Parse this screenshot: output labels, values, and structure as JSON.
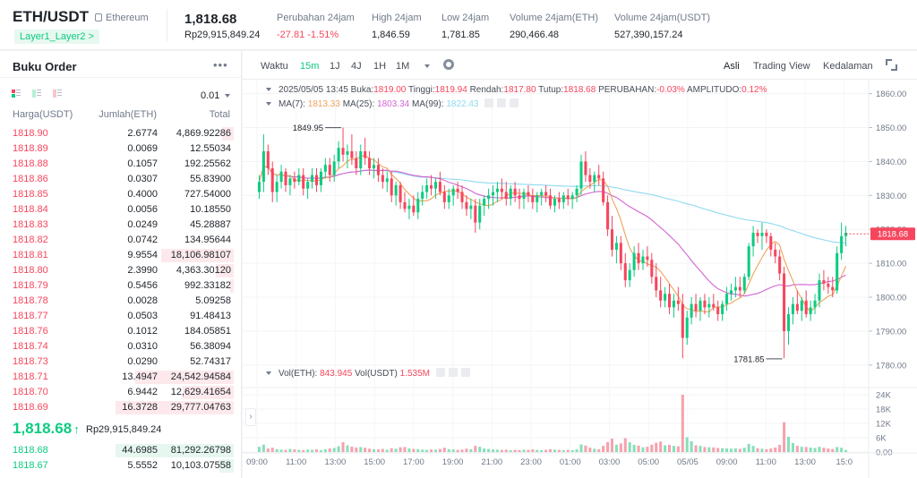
{
  "header": {
    "pair": "ETH/USDT",
    "coin_name": "Ethereum",
    "tag": "Layer1_Layer2 >",
    "last_price": "1,818.68",
    "last_price_fiat": "Rp29,915,849.24",
    "stats": [
      {
        "label": "Perubahan 24jam",
        "value": "-27.81 -1.51%",
        "red": true
      },
      {
        "label": "High 24jam",
        "value": "1,846.59",
        "red": false
      },
      {
        "label": "Low 24jam",
        "value": "1,781.85",
        "red": false
      },
      {
        "label": "Volume 24jam(ETH)",
        "value": "290,466.48",
        "red": false
      },
      {
        "label": "Volume 24jam(USDT)",
        "value": "527,390,157.24",
        "red": false
      }
    ]
  },
  "orderbook": {
    "title": "Buku Order",
    "more": "•••",
    "precision": "0.01",
    "col_price": "Harga(USDT)",
    "col_amount": "Jumlah(ETH)",
    "col_total": "Total",
    "asks": [
      {
        "price": "1818.90",
        "amount": "2.6774",
        "total": "4,869.92286",
        "depth": 0.1
      },
      {
        "price": "1818.89",
        "amount": "0.0069",
        "total": "12.55034",
        "depth": 0.0
      },
      {
        "price": "1818.88",
        "amount": "0.1057",
        "total": "192.25562",
        "depth": 0.0
      },
      {
        "price": "1818.86",
        "amount": "0.0307",
        "total": "55.83900",
        "depth": 0.0
      },
      {
        "price": "1818.85",
        "amount": "0.4000",
        "total": "727.54000",
        "depth": 0.0
      },
      {
        "price": "1818.84",
        "amount": "0.0056",
        "total": "10.18550",
        "depth": 0.0
      },
      {
        "price": "1818.83",
        "amount": "0.0249",
        "total": "45.28887",
        "depth": 0.0
      },
      {
        "price": "1818.82",
        "amount": "0.0742",
        "total": "134.95644",
        "depth": 0.0
      },
      {
        "price": "1818.81",
        "amount": "9.9554",
        "total": "18,106.98107",
        "depth": 0.61
      },
      {
        "price": "1818.80",
        "amount": "2.3990",
        "total": "4,363.30120",
        "depth": 0.15
      },
      {
        "price": "1818.79",
        "amount": "0.5456",
        "total": "992.33182",
        "depth": 0.03
      },
      {
        "price": "1818.78",
        "amount": "0.0028",
        "total": "5.09258",
        "depth": 0.0
      },
      {
        "price": "1818.77",
        "amount": "0.0503",
        "total": "91.48413",
        "depth": 0.0
      },
      {
        "price": "1818.76",
        "amount": "0.1012",
        "total": "184.05851",
        "depth": 0.0
      },
      {
        "price": "1818.74",
        "amount": "0.0310",
        "total": "56.38094",
        "depth": 0.0
      },
      {
        "price": "1818.73",
        "amount": "0.0290",
        "total": "52.74317",
        "depth": 0.0
      },
      {
        "price": "1818.71",
        "amount": "13.4947",
        "total": "24,542.94584",
        "depth": 0.83
      },
      {
        "price": "1818.70",
        "amount": "6.9442",
        "total": "12,629.41654",
        "depth": 0.43
      },
      {
        "price": "1818.69",
        "amount": "16.3728",
        "total": "29,777.04763",
        "depth": 1.0
      }
    ],
    "last_price": "1,818.68",
    "last_arrow": "↑",
    "last_fiat": "Rp29,915,849.24",
    "bids": [
      {
        "price": "1818.68",
        "amount": "44.6985",
        "total": "81,292.26798",
        "depth": 1.0
      },
      {
        "price": "1818.67",
        "amount": "5.5552",
        "total": "10,103.07558",
        "depth": 0.12
      }
    ]
  },
  "chart_toolbar": {
    "time_label": "Waktu",
    "intervals": [
      "15m",
      "1J",
      "4J",
      "1H",
      "1M"
    ],
    "active_interval": "15m",
    "views": [
      "Asli",
      "Trading View",
      "Kedalaman"
    ],
    "active_view": "Asli"
  },
  "chart_legend": {
    "date": "2025/05/05 13:45",
    "open_label": "Buka:",
    "open": "1819.00",
    "high_label": "Tinggi:",
    "high": "1819.94",
    "low_label": "Rendah:",
    "low": "1817.80",
    "close_label": "Tutup:",
    "close": "1818.68",
    "change_label": "PERUBAHAN:",
    "change": "-0.03%",
    "amp_label": "AMPLITUDO:",
    "amp": "0.12%",
    "ma7_label": "MA(7):",
    "ma7": "1813.33",
    "ma25_label": "MA(25):",
    "ma25": "1803.34",
    "ma99_label": "MA(99):",
    "ma99": "1822.43",
    "vol_eth_label": "Vol(ETH):",
    "vol_eth": "843.945",
    "vol_usdt_label": "Vol(USDT)",
    "vol_usdt": "1.535M"
  },
  "colors": {
    "up": "#0ecb81",
    "down": "#f6465d",
    "ma7": "#f0a35b",
    "ma25": "#d365d3",
    "ma99": "#8fd9f0"
  },
  "chart_data": {
    "type": "candlestick",
    "interval": "15m",
    "price_axis": {
      "min": 1776,
      "max": 1862,
      "ticks": [
        1780,
        1790,
        1800,
        1810,
        1820,
        1830,
        1840,
        1850,
        1860
      ],
      "tick_labels": [
        "1780.00",
        "1790.00",
        "1800.00",
        "1810.00",
        "1820.00",
        "1830.00",
        "1840.00",
        "1850.00",
        "1860.00"
      ]
    },
    "volume_axis": {
      "min": 0,
      "max": 24000,
      "ticks": [
        0,
        6000,
        12000,
        18000,
        24000
      ],
      "tick_labels": [
        "0.00",
        "6K",
        "12K",
        "18K",
        "24K"
      ]
    },
    "time_labels": [
      "09:00",
      "11:00",
      "13:00",
      "15:00",
      "17:00",
      "19:00",
      "21:00",
      "23:00",
      "01:00",
      "03:00",
      "05:00",
      "05/05",
      "09:00",
      "11:00",
      "13:00",
      "15:0"
    ],
    "annotations": [
      {
        "text": "1849.95",
        "value": 1849.95,
        "candle": 19
      },
      {
        "text": "1781.85",
        "value": 1781.85,
        "candle": 119
      }
    ],
    "current_price_label": "1818.68",
    "current_price": 1818.68,
    "candles": [
      [
        1831,
        1836,
        1829,
        1834
      ],
      [
        1834,
        1848,
        1831,
        1843
      ],
      [
        1843,
        1845,
        1836,
        1838
      ],
      [
        1838,
        1840,
        1828,
        1831
      ],
      [
        1831,
        1836,
        1828,
        1834
      ],
      [
        1834,
        1839,
        1832,
        1837
      ],
      [
        1837,
        1838,
        1831,
        1833
      ],
      [
        1833,
        1836,
        1830,
        1835
      ],
      [
        1835,
        1837,
        1832,
        1834
      ],
      [
        1834,
        1838,
        1833,
        1836
      ],
      [
        1836,
        1838,
        1830,
        1832
      ],
      [
        1832,
        1835,
        1829,
        1834
      ],
      [
        1834,
        1838,
        1832,
        1836
      ],
      [
        1836,
        1838,
        1831,
        1833
      ],
      [
        1833,
        1838,
        1831,
        1837
      ],
      [
        1837,
        1841,
        1835,
        1839
      ],
      [
        1839,
        1841,
        1834,
        1836
      ],
      [
        1836,
        1842,
        1834,
        1840
      ],
      [
        1840,
        1846,
        1838,
        1844
      ],
      [
        1844,
        1850,
        1840,
        1842
      ],
      [
        1842,
        1845,
        1838,
        1843
      ],
      [
        1843,
        1848,
        1839,
        1841
      ],
      [
        1841,
        1843,
        1836,
        1838
      ],
      [
        1838,
        1845,
        1836,
        1843
      ],
      [
        1843,
        1847,
        1839,
        1841
      ],
      [
        1841,
        1843,
        1836,
        1838
      ],
      [
        1838,
        1841,
        1835,
        1839
      ],
      [
        1839,
        1841,
        1834,
        1836
      ],
      [
        1836,
        1838,
        1832,
        1834
      ],
      [
        1834,
        1837,
        1831,
        1835
      ],
      [
        1835,
        1837,
        1828,
        1830
      ],
      [
        1830,
        1834,
        1827,
        1833
      ],
      [
        1833,
        1834,
        1826,
        1828
      ],
      [
        1828,
        1831,
        1825,
        1826
      ],
      [
        1826,
        1829,
        1823,
        1827
      ],
      [
        1827,
        1830,
        1824,
        1825
      ],
      [
        1825,
        1831,
        1823,
        1829
      ],
      [
        1829,
        1833,
        1827,
        1831
      ],
      [
        1831,
        1835,
        1829,
        1833
      ],
      [
        1833,
        1836,
        1830,
        1832
      ],
      [
        1832,
        1835,
        1829,
        1834
      ],
      [
        1834,
        1837,
        1830,
        1831
      ],
      [
        1831,
        1833,
        1826,
        1828
      ],
      [
        1828,
        1832,
        1826,
        1830
      ],
      [
        1830,
        1833,
        1827,
        1832
      ],
      [
        1832,
        1834,
        1829,
        1831
      ],
      [
        1831,
        1833,
        1826,
        1828
      ],
      [
        1828,
        1830,
        1824,
        1826
      ],
      [
        1826,
        1829,
        1823,
        1827
      ],
      [
        1827,
        1829,
        1819,
        1822
      ],
      [
        1822,
        1829,
        1820,
        1827
      ],
      [
        1827,
        1830,
        1824,
        1829
      ],
      [
        1829,
        1832,
        1826,
        1830
      ],
      [
        1830,
        1833,
        1827,
        1831
      ],
      [
        1831,
        1834,
        1828,
        1832
      ],
      [
        1832,
        1835,
        1829,
        1831
      ],
      [
        1831,
        1834,
        1827,
        1829
      ],
      [
        1829,
        1833,
        1827,
        1832
      ],
      [
        1832,
        1834,
        1828,
        1830
      ],
      [
        1830,
        1832,
        1826,
        1829
      ],
      [
        1829,
        1832,
        1826,
        1831
      ],
      [
        1831,
        1833,
        1828,
        1830
      ],
      [
        1830,
        1832,
        1826,
        1828
      ],
      [
        1828,
        1831,
        1825,
        1830
      ],
      [
        1830,
        1832,
        1827,
        1831
      ],
      [
        1831,
        1833,
        1828,
        1830
      ],
      [
        1830,
        1832,
        1826,
        1827
      ],
      [
        1827,
        1830,
        1825,
        1829
      ],
      [
        1829,
        1831,
        1826,
        1828
      ],
      [
        1828,
        1831,
        1826,
        1830
      ],
      [
        1830,
        1832,
        1827,
        1829
      ],
      [
        1829,
        1831,
        1826,
        1830
      ],
      [
        1830,
        1833,
        1828,
        1832
      ],
      [
        1832,
        1842,
        1830,
        1840
      ],
      [
        1840,
        1843,
        1834,
        1836
      ],
      [
        1836,
        1838,
        1832,
        1834
      ],
      [
        1834,
        1837,
        1831,
        1836
      ],
      [
        1836,
        1839,
        1833,
        1835
      ],
      [
        1835,
        1837,
        1827,
        1828
      ],
      [
        1828,
        1830,
        1818,
        1820
      ],
      [
        1820,
        1824,
        1812,
        1814
      ],
      [
        1814,
        1818,
        1810,
        1816
      ],
      [
        1816,
        1818,
        1808,
        1810
      ],
      [
        1810,
        1813,
        1803,
        1805
      ],
      [
        1805,
        1810,
        1803,
        1808
      ],
      [
        1808,
        1815,
        1806,
        1813
      ],
      [
        1813,
        1816,
        1808,
        1810
      ],
      [
        1810,
        1814,
        1808,
        1812
      ],
      [
        1812,
        1815,
        1809,
        1811
      ],
      [
        1811,
        1813,
        1804,
        1806
      ],
      [
        1806,
        1810,
        1800,
        1802
      ],
      [
        1802,
        1806,
        1797,
        1799
      ],
      [
        1799,
        1803,
        1797,
        1801
      ],
      [
        1801,
        1804,
        1795,
        1797
      ],
      [
        1797,
        1801,
        1794,
        1799
      ],
      [
        1799,
        1803,
        1796,
        1798
      ],
      [
        1798,
        1801,
        1782,
        1788
      ],
      [
        1788,
        1796,
        1786,
        1794
      ],
      [
        1794,
        1800,
        1792,
        1798
      ],
      [
        1798,
        1801,
        1794,
        1796
      ],
      [
        1796,
        1800,
        1793,
        1799
      ],
      [
        1799,
        1801,
        1795,
        1797
      ],
      [
        1797,
        1800,
        1794,
        1798
      ],
      [
        1798,
        1801,
        1796,
        1797
      ],
      [
        1797,
        1799,
        1793,
        1795
      ],
      [
        1795,
        1799,
        1793,
        1798
      ],
      [
        1798,
        1803,
        1796,
        1801
      ],
      [
        1801,
        1804,
        1799,
        1802
      ],
      [
        1802,
        1806,
        1800,
        1803
      ],
      [
        1803,
        1806,
        1800,
        1802
      ],
      [
        1802,
        1807,
        1801,
        1806
      ],
      [
        1806,
        1816,
        1805,
        1815
      ],
      [
        1815,
        1821,
        1812,
        1819
      ],
      [
        1819,
        1820,
        1816,
        1818
      ],
      [
        1818,
        1822,
        1814,
        1819
      ],
      [
        1819,
        1820,
        1816,
        1818
      ],
      [
        1818,
        1819,
        1812,
        1814
      ],
      [
        1814,
        1816,
        1810,
        1812
      ],
      [
        1812,
        1814,
        1805,
        1807
      ],
      [
        1807,
        1809,
        1782,
        1790
      ],
      [
        1790,
        1797,
        1786,
        1795
      ],
      [
        1795,
        1800,
        1792,
        1798
      ],
      [
        1798,
        1802,
        1795,
        1796
      ],
      [
        1796,
        1800,
        1793,
        1799
      ],
      [
        1799,
        1802,
        1794,
        1795
      ],
      [
        1795,
        1799,
        1793,
        1797
      ],
      [
        1797,
        1801,
        1795,
        1799
      ],
      [
        1799,
        1807,
        1797,
        1805
      ],
      [
        1805,
        1808,
        1802,
        1804
      ],
      [
        1804,
        1806,
        1801,
        1803
      ],
      [
        1803,
        1806,
        1800,
        1802
      ],
      [
        1802,
        1815,
        1801,
        1813
      ],
      [
        1813,
        1822,
        1811,
        1818
      ],
      [
        1818,
        1821,
        1815,
        1819
      ]
    ],
    "volumes": [
      2200,
      3100,
      1500,
      1800,
      1200,
      1000,
      900,
      1300,
      1100,
      900,
      800,
      1000,
      900,
      1100,
      800,
      1200,
      1500,
      1700,
      2400,
      4100,
      2800,
      2300,
      1900,
      2100,
      1800,
      1400,
      1200,
      1100,
      1300,
      1000,
      1600,
      1400,
      2000,
      2100,
      1500,
      1300,
      1200,
      1000,
      900,
      1100,
      1000,
      1300,
      1800,
      1200,
      1100,
      900,
      1000,
      1400,
      1200,
      2600,
      2200,
      1500,
      1300,
      1100,
      1000,
      900,
      1000,
      800,
      900,
      800,
      1000,
      900,
      1100,
      900,
      800,
      900,
      1200,
      1000,
      900,
      800,
      900,
      800,
      1100,
      3200,
      2700,
      1800,
      1400,
      1200,
      2600,
      4200,
      5600,
      3100,
      3600,
      5800,
      4100,
      3000,
      2700,
      2000,
      2200,
      3100,
      3900,
      4400,
      2800,
      3000,
      2600,
      2400,
      24000,
      6200,
      4500,
      2800,
      2600,
      2100,
      2000,
      1900,
      1700,
      1600,
      1500,
      1400,
      1500,
      1300,
      1800,
      3400,
      2600,
      1600,
      1400,
      1200,
      1500,
      1900,
      3000,
      12500,
      6400,
      3800,
      2600,
      2200,
      2100,
      1900,
      1700,
      2200,
      1800,
      1500,
      1300,
      2100,
      1800,
      844
    ]
  }
}
